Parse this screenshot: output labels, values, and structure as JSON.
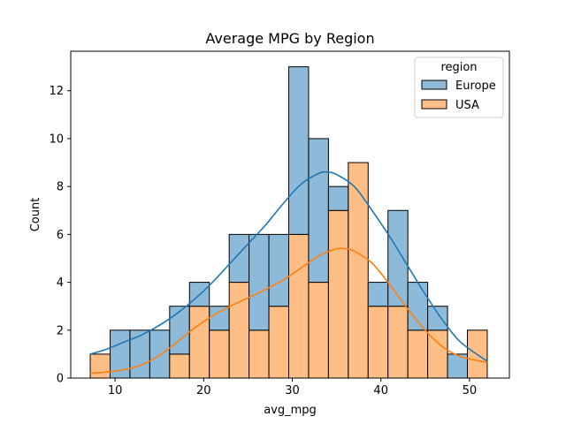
{
  "chart_data": {
    "type": "bar",
    "stacked": true,
    "title": "Average MPG by Region",
    "xlabel": "avg_mpg",
    "ylabel": "Count",
    "xlim": [
      5,
      54.5
    ],
    "ylim": [
      0,
      13.65
    ],
    "x_ticks": [
      10,
      20,
      30,
      40,
      50
    ],
    "y_ticks": [
      0,
      2,
      4,
      6,
      8,
      10,
      12
    ],
    "bin_edges": [
      7.2,
      9.44,
      11.68,
      13.92,
      16.16,
      18.4,
      20.64,
      22.88,
      25.12,
      27.36,
      29.6,
      31.84,
      34.08,
      36.32,
      38.56,
      40.8,
      43.04,
      45.28,
      47.52,
      49.76,
      52.0
    ],
    "legend": {
      "title": "region",
      "location": "upper-right"
    },
    "series": [
      {
        "name": "Europe",
        "color": "#8ebad9",
        "line_color": "#1f77b4",
        "values": [
          0,
          2,
          2,
          2,
          2,
          1,
          1,
          2,
          4,
          3,
          7,
          6,
          1,
          0,
          1,
          4,
          2,
          1,
          1,
          0
        ]
      },
      {
        "name": "USA",
        "color": "#ffbe86",
        "line_color": "#ff7f0e",
        "values": [
          1,
          0,
          0,
          0,
          1,
          3,
          2,
          4,
          2,
          3,
          6,
          4,
          7,
          9,
          3,
          3,
          2,
          2,
          0,
          2
        ]
      }
    ],
    "kde": [
      {
        "name": "Europe",
        "x": [
          7.2,
          9,
          11,
          13,
          15,
          17,
          19,
          21,
          23,
          25,
          27,
          29,
          31,
          33,
          34,
          35,
          37,
          39,
          41,
          43,
          45,
          47,
          49,
          52
        ],
        "y": [
          1.0,
          1.2,
          1.5,
          1.8,
          2.2,
          2.7,
          3.3,
          4.0,
          4.8,
          5.6,
          6.4,
          7.3,
          8.1,
          8.55,
          8.6,
          8.5,
          8.0,
          7.0,
          5.9,
          4.7,
          3.5,
          2.4,
          1.5,
          0.7
        ]
      },
      {
        "name": "USA",
        "x": [
          7.2,
          9,
          11,
          13,
          15,
          17,
          19,
          21,
          23,
          25,
          27,
          29,
          31,
          33,
          35,
          36,
          37,
          39,
          41,
          43,
          45,
          47,
          49,
          52
        ],
        "y": [
          0.2,
          0.25,
          0.35,
          0.55,
          0.95,
          1.5,
          2.1,
          2.6,
          3.0,
          3.35,
          3.7,
          4.1,
          4.6,
          5.1,
          5.4,
          5.4,
          5.3,
          4.8,
          3.9,
          2.9,
          2.0,
          1.3,
          0.9,
          0.65
        ]
      }
    ]
  }
}
